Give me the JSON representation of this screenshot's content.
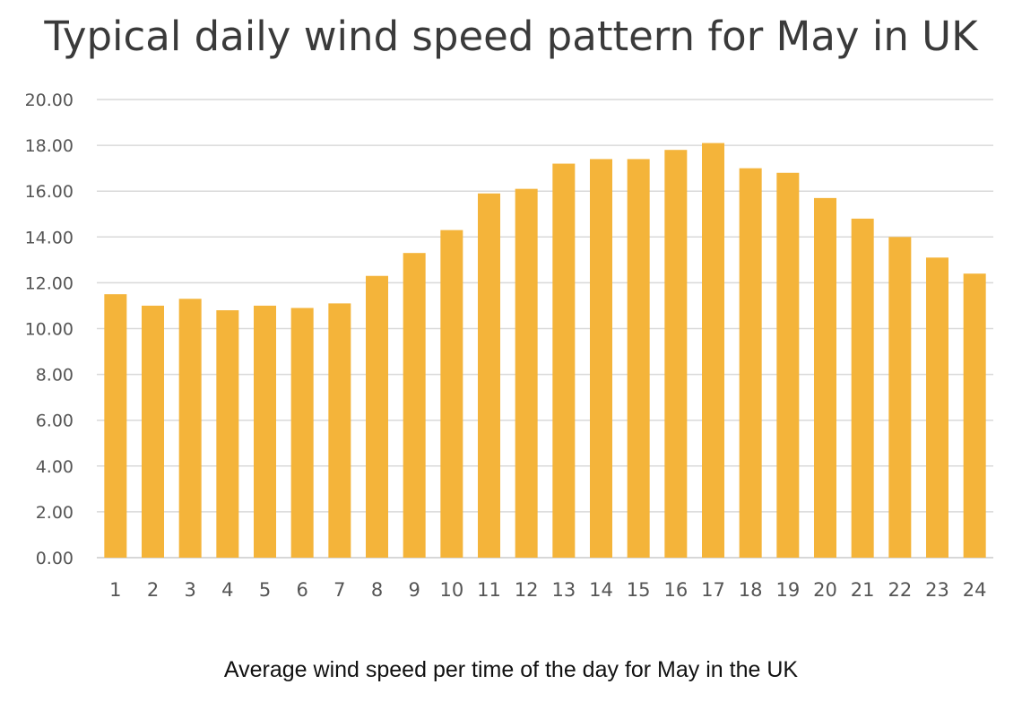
{
  "chart_data": {
    "type": "bar",
    "title": "Typical daily wind speed pattern for May in UK",
    "categories": [
      "1",
      "2",
      "3",
      "4",
      "5",
      "6",
      "7",
      "8",
      "9",
      "10",
      "11",
      "12",
      "13",
      "14",
      "15",
      "16",
      "17",
      "18",
      "19",
      "20",
      "21",
      "22",
      "23",
      "24"
    ],
    "values": [
      11.5,
      11.0,
      11.3,
      10.8,
      11.0,
      10.9,
      11.1,
      12.3,
      13.3,
      14.3,
      15.9,
      16.1,
      17.2,
      17.4,
      17.4,
      17.8,
      18.1,
      17.0,
      16.8,
      15.7,
      14.8,
      14.0,
      13.1,
      12.4
    ],
    "ylim": [
      0,
      20
    ],
    "yticks": [
      "0.00",
      "2.00",
      "4.00",
      "6.00",
      "8.00",
      "10.00",
      "12.00",
      "14.00",
      "16.00",
      "18.00",
      "20.00"
    ],
    "grid": true,
    "bar_color": "#F4B43A"
  },
  "caption": "Average wind speed per time of the day for May in the UK"
}
